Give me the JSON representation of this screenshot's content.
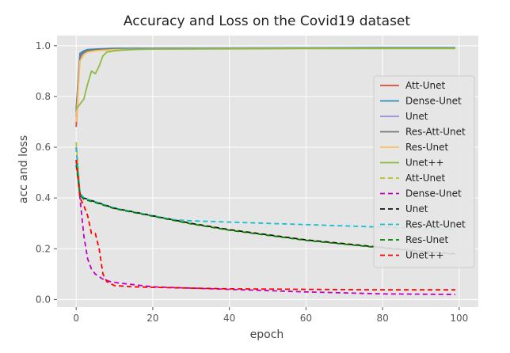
{
  "chart_data": {
    "type": "line",
    "title": "Accuracy and Loss on the Covid19 dataset",
    "xlabel": "epoch",
    "ylabel": "acc and loss",
    "xlim": [
      -5,
      105
    ],
    "ylim": [
      -0.03,
      1.04
    ],
    "xticks": [
      0,
      20,
      40,
      60,
      80,
      100
    ],
    "yticks": [
      0.0,
      0.2,
      0.4,
      0.6,
      0.8,
      1.0
    ],
    "grid": true,
    "legend_position": "right",
    "series": [
      {
        "name": "Att-Unet",
        "color": "#e24a33",
        "dash": "solid",
        "x": [
          0,
          1,
          2,
          3,
          5,
          10,
          20,
          40,
          60,
          80,
          99
        ],
        "y": [
          0.68,
          0.96,
          0.975,
          0.98,
          0.983,
          0.986,
          0.988,
          0.99,
          0.99,
          0.99,
          0.99
        ]
      },
      {
        "name": "Dense-Unet",
        "color": "#348abd",
        "dash": "solid",
        "x": [
          0,
          1,
          2,
          3,
          5,
          10,
          20,
          40,
          60,
          80,
          99
        ],
        "y": [
          0.75,
          0.97,
          0.98,
          0.985,
          0.987,
          0.99,
          0.99,
          0.991,
          0.992,
          0.993,
          0.993
        ]
      },
      {
        "name": "Unet",
        "color": "#988ed5",
        "dash": "solid",
        "x": [
          0,
          1,
          2,
          3,
          5,
          10,
          20,
          40,
          60,
          80,
          99
        ],
        "y": [
          0.72,
          0.95,
          0.97,
          0.978,
          0.982,
          0.986,
          0.988,
          0.989,
          0.99,
          0.99,
          0.99
        ]
      },
      {
        "name": "Res-Att-Unet",
        "color": "#777777",
        "dash": "solid",
        "x": [
          0,
          1,
          2,
          3,
          5,
          10,
          20,
          40,
          60,
          80,
          99
        ],
        "y": [
          0.74,
          0.96,
          0.975,
          0.98,
          0.984,
          0.987,
          0.988,
          0.989,
          0.99,
          0.99,
          0.99
        ]
      },
      {
        "name": "Res-Unet",
        "color": "#fbc15e",
        "dash": "solid",
        "x": [
          0,
          1,
          2,
          3,
          5,
          10,
          20,
          40,
          60,
          80,
          99
        ],
        "y": [
          0.7,
          0.94,
          0.965,
          0.975,
          0.98,
          0.985,
          0.987,
          0.989,
          0.99,
          0.99,
          0.99
        ]
      },
      {
        "name": "Unet++",
        "color": "#8eba42",
        "dash": "solid",
        "x": [
          0,
          1,
          2,
          3,
          4,
          5,
          6,
          7,
          8,
          10,
          12,
          15,
          20,
          40,
          60,
          80,
          99
        ],
        "y": [
          0.75,
          0.77,
          0.79,
          0.85,
          0.9,
          0.89,
          0.92,
          0.96,
          0.975,
          0.98,
          0.983,
          0.985,
          0.987,
          0.988,
          0.989,
          0.989,
          0.989
        ]
      },
      {
        "name": "Att-Unet",
        "color": "#bcbd22",
        "dash": "dashed",
        "x": [
          0,
          1,
          2,
          5,
          10,
          20,
          30,
          40,
          50,
          60,
          70,
          80,
          90,
          99
        ],
        "y": [
          0.62,
          0.42,
          0.4,
          0.385,
          0.36,
          0.33,
          0.3,
          0.275,
          0.255,
          0.235,
          0.22,
          0.205,
          0.19,
          0.18
        ]
      },
      {
        "name": "Dense-Unet",
        "color": "#c000c0",
        "dash": "dashed",
        "x": [
          0,
          1,
          2,
          3,
          4,
          5,
          7,
          9,
          11,
          14,
          20,
          30,
          40,
          50,
          60,
          80,
          99
        ],
        "y": [
          0.6,
          0.4,
          0.25,
          0.16,
          0.12,
          0.1,
          0.08,
          0.07,
          0.065,
          0.06,
          0.05,
          0.045,
          0.04,
          0.035,
          0.03,
          0.022,
          0.02
        ]
      },
      {
        "name": "Unet",
        "color": "#111111",
        "dash": "dashed",
        "x": [
          0,
          1,
          2,
          5,
          10,
          20,
          30,
          40,
          50,
          60,
          70,
          80,
          90,
          99
        ],
        "y": [
          0.55,
          0.415,
          0.4,
          0.385,
          0.36,
          0.33,
          0.3,
          0.275,
          0.255,
          0.235,
          0.22,
          0.205,
          0.19,
          0.18
        ]
      },
      {
        "name": "Res-Att-Unet",
        "color": "#17becf",
        "dash": "dashed",
        "x": [
          0,
          1,
          2,
          5,
          10,
          20,
          25,
          30,
          40,
          50,
          60,
          70,
          80,
          90,
          99
        ],
        "y": [
          0.6,
          0.42,
          0.4,
          0.385,
          0.36,
          0.33,
          0.315,
          0.31,
          0.305,
          0.3,
          0.295,
          0.29,
          0.285,
          0.28,
          0.275
        ]
      },
      {
        "name": "Res-Unet",
        "color": "#008000",
        "dash": "dashed",
        "x": [
          0,
          1,
          2,
          5,
          10,
          20,
          30,
          40,
          50,
          60,
          70,
          80,
          90,
          99
        ],
        "y": [
          0.53,
          0.41,
          0.395,
          0.382,
          0.358,
          0.328,
          0.298,
          0.273,
          0.253,
          0.233,
          0.218,
          0.203,
          0.188,
          0.178
        ]
      },
      {
        "name": "Unet++",
        "color": "#ff0000",
        "dash": "dashed",
        "x": [
          0,
          1,
          2,
          3,
          4,
          5,
          6,
          7,
          8,
          10,
          15,
          20,
          30,
          40,
          60,
          80,
          99
        ],
        "y": [
          0.55,
          0.4,
          0.37,
          0.33,
          0.26,
          0.26,
          0.2,
          0.1,
          0.07,
          0.055,
          0.05,
          0.048,
          0.045,
          0.042,
          0.04,
          0.038,
          0.038
        ]
      }
    ]
  }
}
